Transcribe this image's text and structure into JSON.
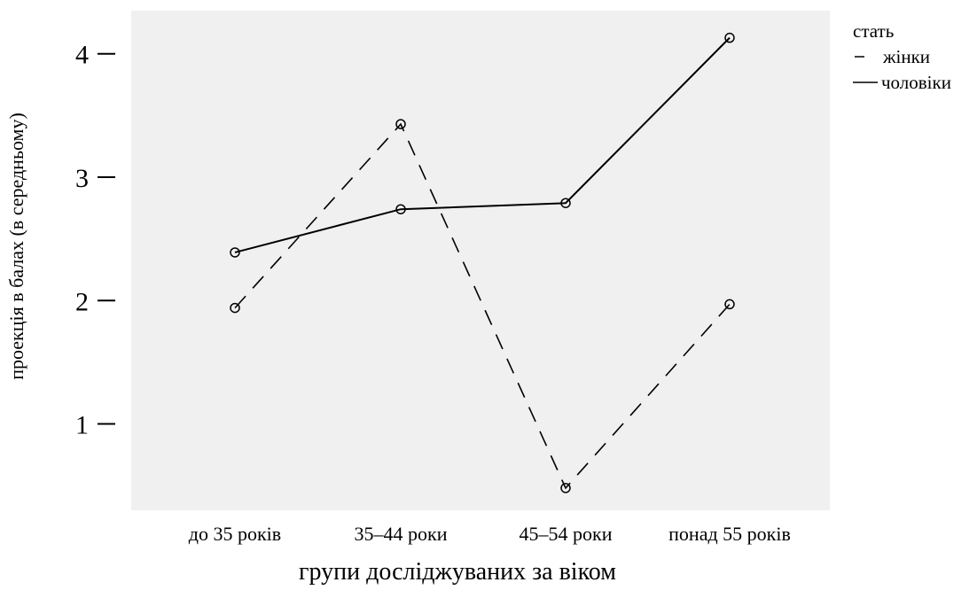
{
  "chart_data": {
    "type": "line",
    "xlabel": "групи досліджуваних за віком",
    "ylabel": "проекція в балах (в середньому)",
    "categories": [
      "до 35 років",
      "35–44 роки",
      "45–54 роки",
      "понад 55 років"
    ],
    "yticks": [
      1,
      2,
      3,
      4
    ],
    "ylim": [
      0.3,
      4.35
    ],
    "grid": false,
    "legend": {
      "title": "стать",
      "placement": "top-right"
    },
    "series": [
      {
        "name": "жінки",
        "line_style": "dashed",
        "values": [
          1.94,
          3.43,
          0.48,
          1.97
        ]
      },
      {
        "name": "чоловіки",
        "line_style": "solid",
        "values": [
          2.39,
          2.74,
          2.79,
          4.13
        ]
      }
    ],
    "colors": {
      "plot_background": "#f0f0f0",
      "line": "#000000"
    }
  }
}
